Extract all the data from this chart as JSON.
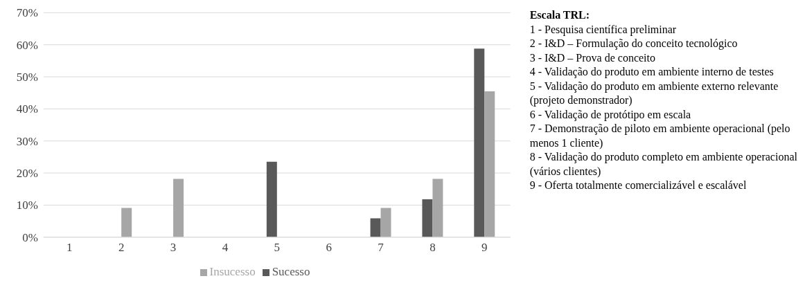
{
  "chart_data": {
    "type": "bar",
    "categories": [
      "1",
      "2",
      "3",
      "4",
      "5",
      "6",
      "7",
      "8",
      "9"
    ],
    "series": [
      {
        "name": "Sucesso",
        "color": "#595959",
        "values": [
          0,
          0,
          0,
          0,
          23.5,
          0,
          5.9,
          11.8,
          58.8
        ]
      },
      {
        "name": "Insucesso",
        "color": "#a6a6a6",
        "values": [
          0,
          9.1,
          18.2,
          0,
          0,
          0,
          9.1,
          18.2,
          45.5
        ]
      }
    ],
    "ylim": [
      0,
      70
    ],
    "yticks": [
      {
        "value": 0,
        "label": "0%"
      },
      {
        "value": 10,
        "label": "10%"
      },
      {
        "value": 20,
        "label": "20%"
      },
      {
        "value": 30,
        "label": "30%"
      },
      {
        "value": 40,
        "label": "40%"
      },
      {
        "value": 50,
        "label": "50%"
      },
      {
        "value": 60,
        "label": "60%"
      },
      {
        "value": 70,
        "label": "70%"
      }
    ],
    "grid": "y",
    "legend": "bottom",
    "annotations": [
      "Escala TRL:",
      "1 - Pesquisa científica preliminar",
      "2 - I&D – Formulação do conceito tecnológico",
      "3 - I&D – Prova de conceito",
      "4 - Validação do produto em ambiente interno de testes",
      "5 - Validação do produto em ambiente externo relevante (projeto demonstrador)",
      "6 - Validação de protótipo em escala",
      "7 - Demonstração de piloto em ambiente operacional (pelo menos 1 cliente)",
      "8 - Validação do produto completo em ambiente operacional (vários clientes)",
      "9 - Oferta totalmente comercializável e escalável"
    ]
  }
}
